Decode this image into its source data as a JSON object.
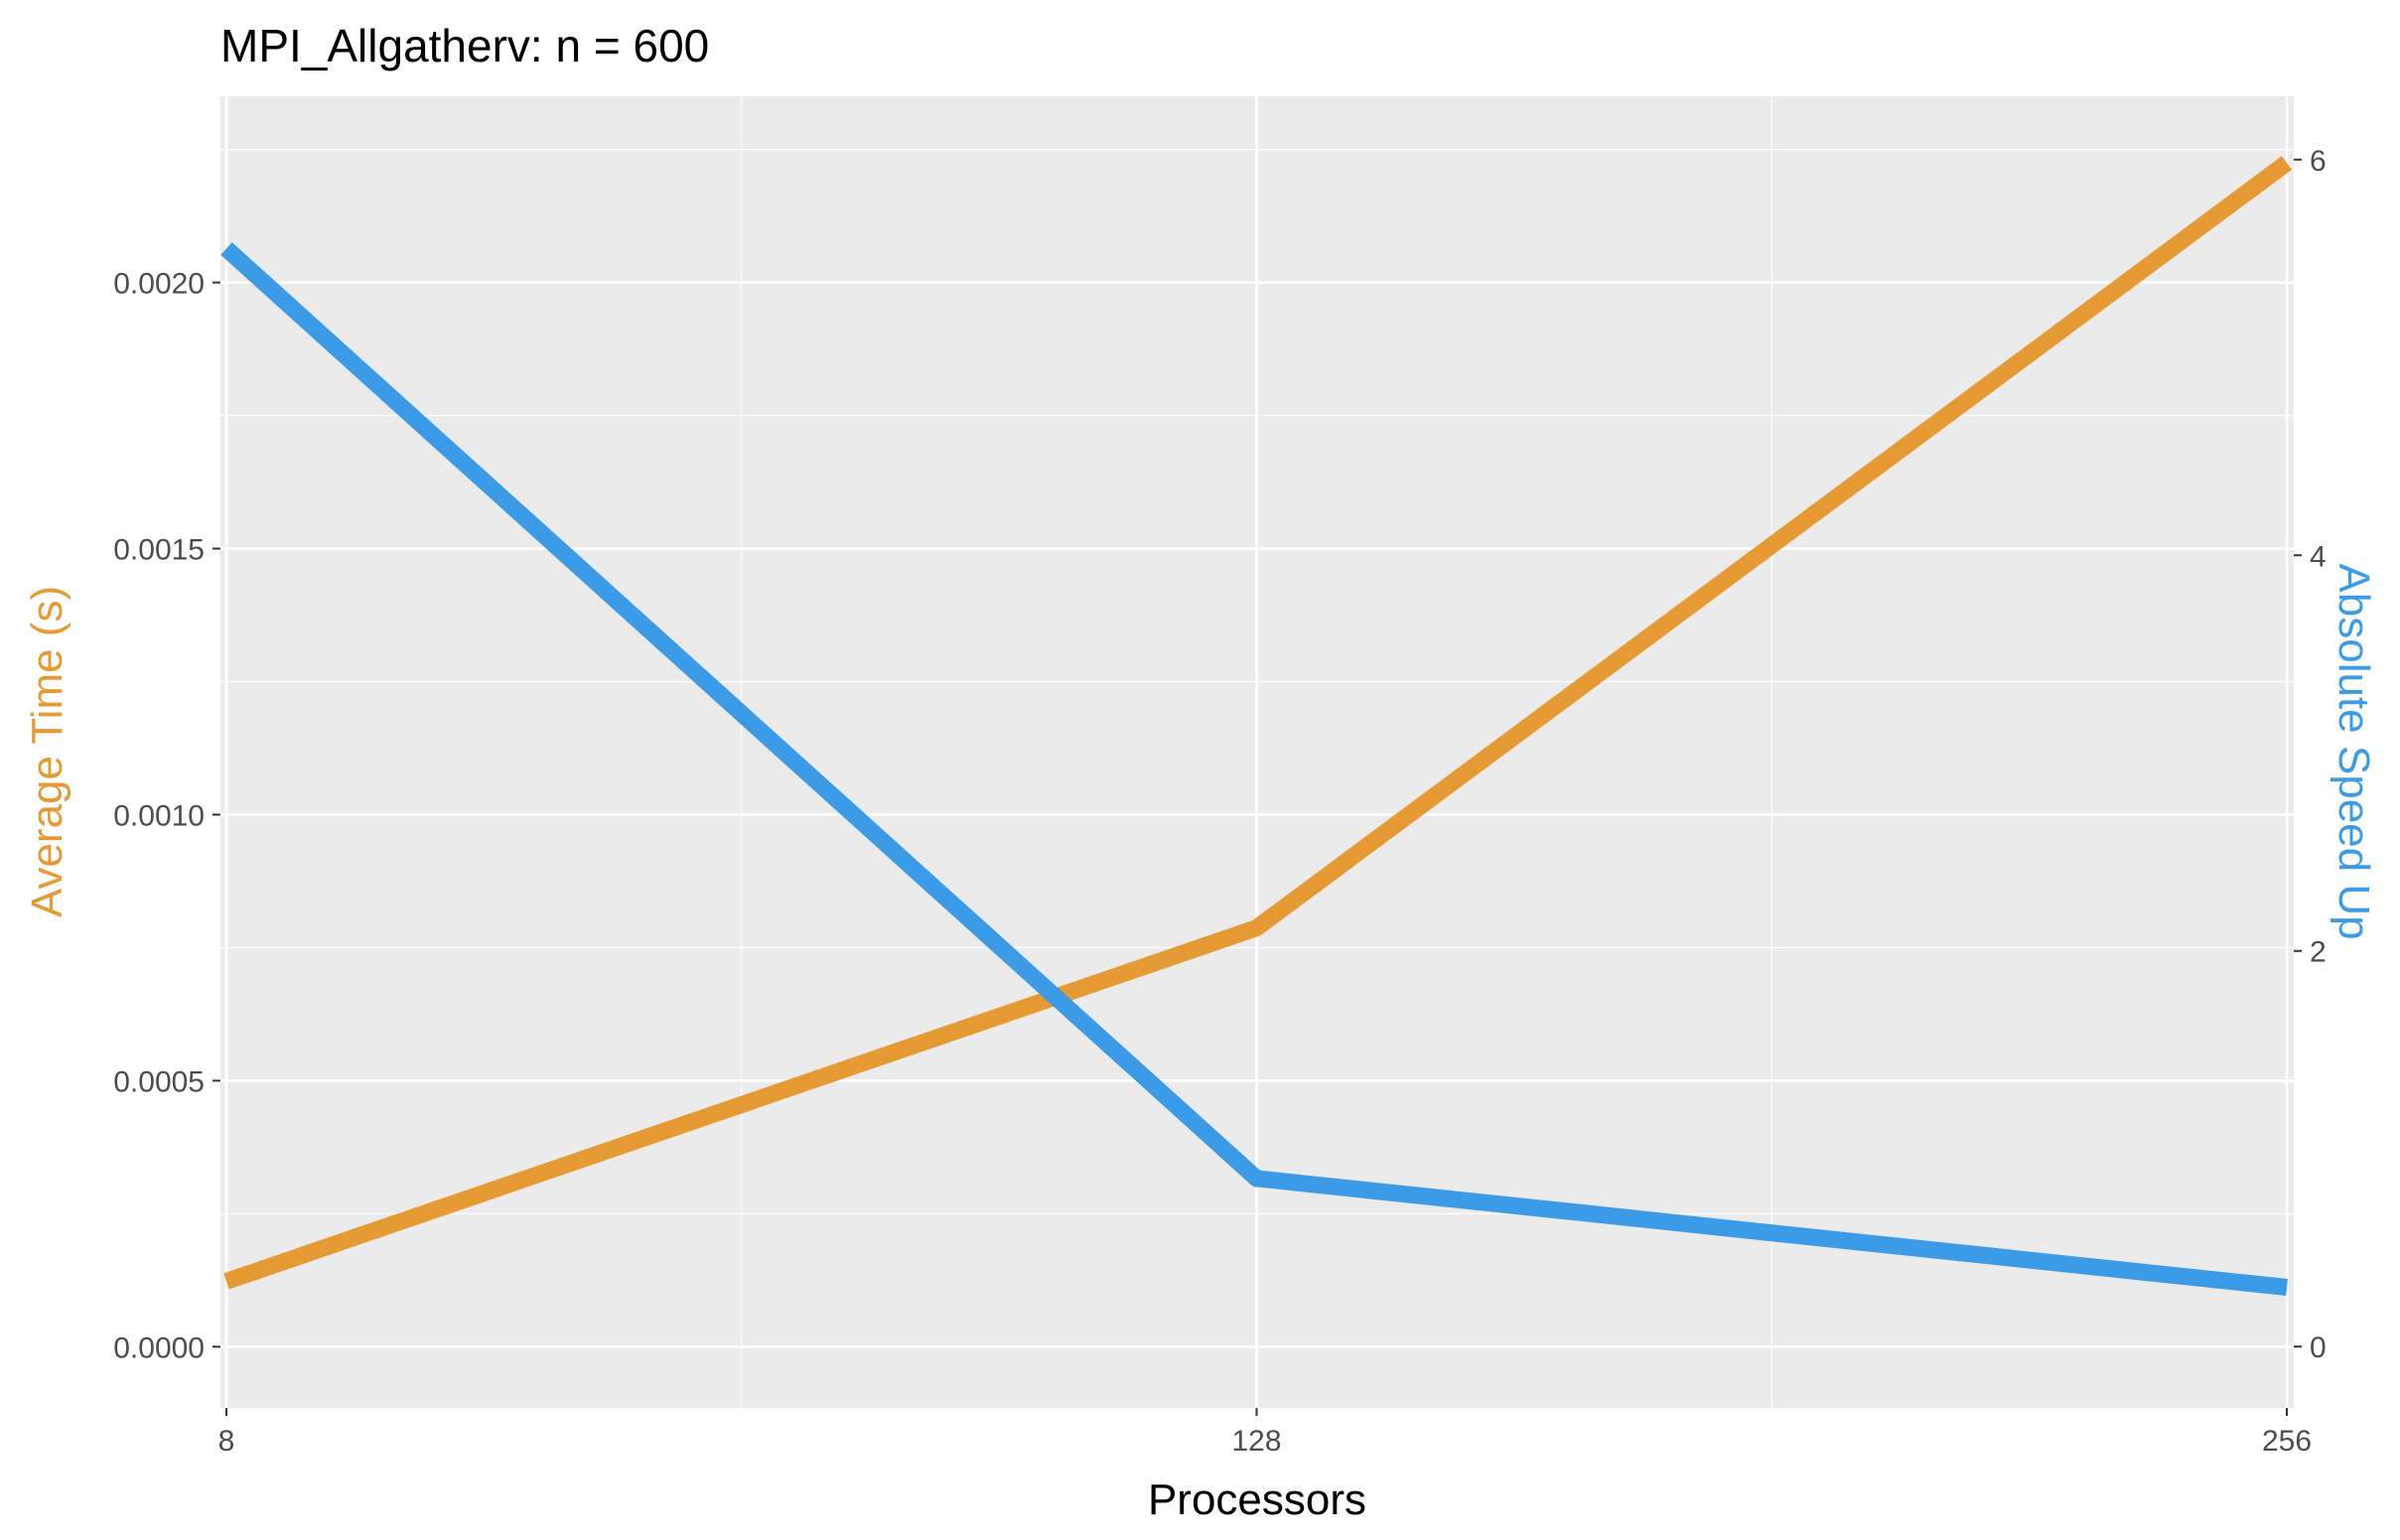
{
  "chart_data": {
    "type": "line",
    "title": "MPI_Allgatherv: n = 600",
    "xlabel": "Processors",
    "ylabel": "Average Time (s)",
    "y2label": "Absolute Speed Up",
    "x": [
      8,
      128,
      256
    ],
    "x_tick_labels": [
      "8",
      "128",
      "256"
    ],
    "xlim": [
      8,
      256
    ],
    "ylim": [
      -0.000115,
      0.00235
    ],
    "y_ticks": [
      "0.0000",
      "0.0005",
      "0.0010",
      "0.0015",
      "0.0020"
    ],
    "y2lim": [
      -0.31,
      6.32
    ],
    "y2_ticks": [
      "0",
      "2",
      "4",
      "6"
    ],
    "grid": true,
    "legend": "none",
    "series": [
      {
        "axis": "left",
        "color": "#E69A33",
        "values": [
          0.000123,
          0.000787,
          0.002225
        ]
      },
      {
        "axis": "right",
        "color": "#3B9BE6",
        "values": [
          5.55,
          0.85,
          0.3
        ]
      }
    ]
  },
  "colors": {
    "panel_bg": "#EBEBEB",
    "grid": "#FFFFFF",
    "time_axis_title": "#E69A33",
    "speedup_axis_title": "#3B9BE6"
  }
}
